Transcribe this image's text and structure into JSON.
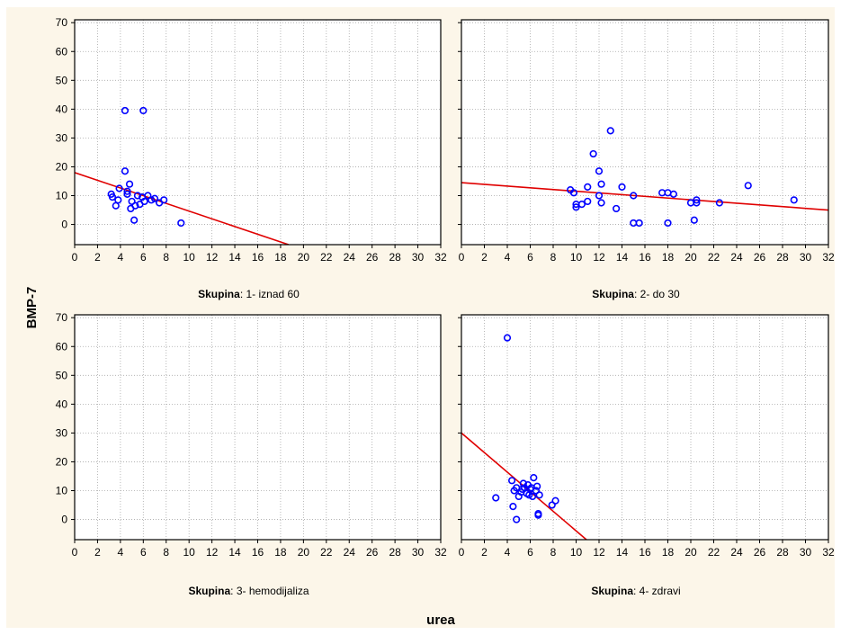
{
  "figure": {
    "ylabel": "BMP-7",
    "xlabel": "urea",
    "panel_background": "#FCF6E9",
    "plot_background": "#FFFFFF",
    "point_color": "#0000FF",
    "line_color": "#E00000"
  },
  "chart_data": [
    {
      "type": "scatter",
      "facet_label": "Skupina",
      "facet_value": ": 1- iznad 60",
      "xlim": [
        0,
        32
      ],
      "ylim": [
        -7,
        71
      ],
      "xticks": [
        0,
        2,
        4,
        6,
        8,
        10,
        12,
        14,
        16,
        18,
        20,
        22,
        24,
        26,
        28,
        30,
        32
      ],
      "yticks": [
        0,
        10,
        20,
        30,
        40,
        50,
        60,
        70
      ],
      "grid": true,
      "points": [
        [
          3.2,
          10.5
        ],
        [
          3.3,
          9.5
        ],
        [
          3.6,
          6.5
        ],
        [
          3.8,
          8.5
        ],
        [
          3.9,
          12.5
        ],
        [
          4.4,
          18.5
        ],
        [
          4.4,
          39.5
        ],
        [
          4.6,
          11.5
        ],
        [
          4.6,
          10.5
        ],
        [
          4.8,
          14
        ],
        [
          4.9,
          5.5
        ],
        [
          5.0,
          8
        ],
        [
          5.2,
          1.5
        ],
        [
          5.3,
          6.5
        ],
        [
          5.5,
          10
        ],
        [
          5.7,
          7
        ],
        [
          5.9,
          9.5
        ],
        [
          6.0,
          39.5
        ],
        [
          6.1,
          8
        ],
        [
          6.4,
          10
        ],
        [
          6.7,
          8.5
        ],
        [
          7.0,
          9
        ],
        [
          7.4,
          7.5
        ],
        [
          7.8,
          8.5
        ],
        [
          9.3,
          0.5
        ]
      ],
      "trend": [
        [
          0,
          18
        ],
        [
          18.7,
          -7
        ]
      ]
    },
    {
      "type": "scatter",
      "facet_label": "Skupina",
      "facet_value": ": 2- do 30",
      "xlim": [
        0,
        32
      ],
      "ylim": [
        -7,
        71
      ],
      "xticks": [
        0,
        2,
        4,
        6,
        8,
        10,
        12,
        14,
        16,
        18,
        20,
        22,
        24,
        26,
        28,
        30,
        32
      ],
      "yticks": [
        0,
        10,
        20,
        30,
        40,
        50,
        60,
        70
      ],
      "grid": true,
      "points": [
        [
          9.5,
          12
        ],
        [
          9.8,
          11
        ],
        [
          10.0,
          7
        ],
        [
          10.0,
          6
        ],
        [
          10.5,
          7
        ],
        [
          11.0,
          13
        ],
        [
          11.0,
          8
        ],
        [
          11.5,
          24.5
        ],
        [
          12.0,
          18.5
        ],
        [
          12.0,
          10
        ],
        [
          12.2,
          14
        ],
        [
          12.2,
          7.5
        ],
        [
          13.0,
          32.5
        ],
        [
          13.5,
          5.5
        ],
        [
          14.0,
          13
        ],
        [
          15.0,
          10
        ],
        [
          15.0,
          0.5
        ],
        [
          15.5,
          0.5
        ],
        [
          17.5,
          11
        ],
        [
          18.0,
          11
        ],
        [
          18.0,
          0.5
        ],
        [
          18.5,
          10.5
        ],
        [
          20.0,
          7.5
        ],
        [
          20.3,
          1.5
        ],
        [
          20.5,
          7.5
        ],
        [
          20.5,
          8.5
        ],
        [
          22.5,
          7.5
        ],
        [
          25.0,
          13.5
        ],
        [
          29.0,
          8.5
        ]
      ],
      "trend": [
        [
          0,
          14.5
        ],
        [
          32,
          5
        ]
      ]
    },
    {
      "type": "scatter",
      "facet_label": "Skupina",
      "facet_value": ": 3- hemodijaliza",
      "xlim": [
        0,
        32
      ],
      "ylim": [
        -7,
        71
      ],
      "xticks": [
        0,
        2,
        4,
        6,
        8,
        10,
        12,
        14,
        16,
        18,
        20,
        22,
        24,
        26,
        28,
        30,
        32
      ],
      "yticks": [
        0,
        10,
        20,
        30,
        40,
        50,
        60,
        70
      ],
      "grid": true,
      "points": [],
      "trend": []
    },
    {
      "type": "scatter",
      "facet_label": "Skupina",
      "facet_value": ": 4- zdravi",
      "xlim": [
        0,
        32
      ],
      "ylim": [
        -7,
        71
      ],
      "xticks": [
        0,
        2,
        4,
        6,
        8,
        10,
        12,
        14,
        16,
        18,
        20,
        22,
        24,
        26,
        28,
        30,
        32
      ],
      "yticks": [
        0,
        10,
        20,
        30,
        40,
        50,
        60,
        70
      ],
      "grid": true,
      "points": [
        [
          3.0,
          7.5
        ],
        [
          4.0,
          63
        ],
        [
          4.4,
          13.5
        ],
        [
          4.5,
          4.5
        ],
        [
          4.6,
          10
        ],
        [
          4.8,
          0
        ],
        [
          4.8,
          11
        ],
        [
          5.0,
          8
        ],
        [
          5.2,
          9.5
        ],
        [
          5.3,
          10.5
        ],
        [
          5.4,
          12.5
        ],
        [
          5.5,
          11
        ],
        [
          5.7,
          9
        ],
        [
          5.8,
          12
        ],
        [
          5.9,
          8.5
        ],
        [
          6.0,
          10.5
        ],
        [
          6.1,
          11
        ],
        [
          6.2,
          8
        ],
        [
          6.3,
          14.5
        ],
        [
          6.5,
          10
        ],
        [
          6.6,
          11.5
        ],
        [
          6.7,
          2
        ],
        [
          6.7,
          1.5
        ],
        [
          6.8,
          8.5
        ],
        [
          7.9,
          5
        ],
        [
          8.2,
          6.5
        ]
      ],
      "trend": [
        [
          0,
          30
        ],
        [
          10.9,
          -7
        ]
      ]
    }
  ]
}
